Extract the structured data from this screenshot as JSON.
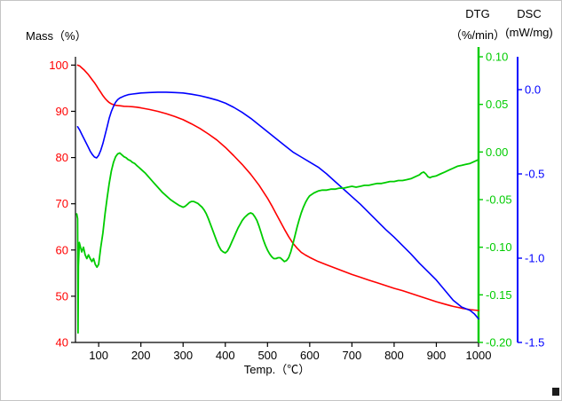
{
  "figure": {
    "mass_axis_title": "Mass（%）",
    "dtg_header": "DTG",
    "dtg_units": "（%/min）",
    "dsc_header": "DSC",
    "dsc_units": "(mW/mg)",
    "x_axis_title": "Temp.（℃）"
  },
  "chart_data": {
    "type": "line",
    "title": "",
    "grid": false,
    "legend": "none",
    "x_axis": {
      "label": "Temp. (℃)",
      "range": [
        45,
        1000
      ],
      "ticks": [
        100,
        200,
        300,
        400,
        500,
        600,
        700,
        800,
        900,
        1000
      ],
      "tick_labels": [
        "100",
        "200",
        "300",
        "400",
        "500",
        "600",
        "700",
        "800",
        "900",
        "1000"
      ],
      "color": "#000000"
    },
    "axes": {
      "mass": {
        "label": "Mass (%)",
        "range": [
          40,
          101.8
        ],
        "ticks": [
          40,
          50,
          60,
          70,
          80,
          90,
          100
        ],
        "tick_labels": [
          "40",
          "50",
          "60",
          "70",
          "80",
          "90",
          "100"
        ],
        "color": "#ff0000",
        "side": "left"
      },
      "dtg": {
        "label": "DTG (%/min)",
        "range": [
          -0.2,
          0.1
        ],
        "ticks": [
          0.1,
          0.05,
          0.0,
          -0.05,
          -0.1,
          -0.15,
          -0.2
        ],
        "tick_labels": [
          "0.10",
          "0.05",
          "0.00",
          "-0.05",
          "-0.10",
          "-0.15",
          "-0.20"
        ],
        "color": "#00cc00",
        "side": "right-inner"
      },
      "dsc": {
        "label": "DSC (mW/mg)",
        "range": [
          -1.5,
          0.195
        ],
        "ticks": [
          0.0,
          -0.5,
          -1.0,
          -1.5
        ],
        "tick_labels": [
          "0.0",
          "-0.5",
          "-1.0",
          "-1.5"
        ],
        "color": "#0000ff",
        "side": "right-outer"
      }
    },
    "series": [
      {
        "name": "Mass",
        "axis": "mass",
        "color": "#ff0000",
        "points": [
          [
            50,
            100
          ],
          [
            55,
            99.8
          ],
          [
            60,
            99.4
          ],
          [
            65,
            99.0
          ],
          [
            70,
            98.5
          ],
          [
            75,
            98.0
          ],
          [
            80,
            97.4
          ],
          [
            85,
            96.8
          ],
          [
            90,
            96.2
          ],
          [
            95,
            95.5
          ],
          [
            100,
            94.8
          ],
          [
            105,
            94.1
          ],
          [
            110,
            93.4
          ],
          [
            115,
            92.8
          ],
          [
            120,
            92.3
          ],
          [
            125,
            91.9
          ],
          [
            130,
            91.6
          ],
          [
            140,
            91.3
          ],
          [
            150,
            91.2
          ],
          [
            160,
            91.1
          ],
          [
            170,
            91.05
          ],
          [
            180,
            91.0
          ],
          [
            190,
            90.9
          ],
          [
            200,
            90.75
          ],
          [
            220,
            90.4
          ],
          [
            240,
            90.0
          ],
          [
            260,
            89.5
          ],
          [
            280,
            88.9
          ],
          [
            300,
            88.2
          ],
          [
            320,
            87.3
          ],
          [
            340,
            86.3
          ],
          [
            360,
            85.1
          ],
          [
            380,
            83.8
          ],
          [
            400,
            82.2
          ],
          [
            420,
            80.4
          ],
          [
            440,
            78.5
          ],
          [
            460,
            76.4
          ],
          [
            480,
            74.0
          ],
          [
            500,
            71.2
          ],
          [
            510,
            69.6
          ],
          [
            520,
            67.9
          ],
          [
            530,
            66.2
          ],
          [
            540,
            64.5
          ],
          [
            550,
            62.9
          ],
          [
            560,
            61.5
          ],
          [
            570,
            60.4
          ],
          [
            580,
            59.5
          ],
          [
            590,
            58.9
          ],
          [
            600,
            58.4
          ],
          [
            620,
            57.5
          ],
          [
            640,
            56.8
          ],
          [
            660,
            56.1
          ],
          [
            680,
            55.4
          ],
          [
            700,
            54.7
          ],
          [
            720,
            54.1
          ],
          [
            740,
            53.5
          ],
          [
            760,
            52.9
          ],
          [
            780,
            52.3
          ],
          [
            800,
            51.7
          ],
          [
            820,
            51.2
          ],
          [
            840,
            50.6
          ],
          [
            860,
            50.0
          ],
          [
            880,
            49.4
          ],
          [
            900,
            48.8
          ],
          [
            920,
            48.3
          ],
          [
            940,
            47.8
          ],
          [
            960,
            47.4
          ],
          [
            980,
            47.1
          ],
          [
            1000,
            46.9
          ]
        ]
      },
      {
        "name": "DSC",
        "axis": "dsc",
        "color": "#0000ff",
        "points": [
          [
            50,
            -0.22
          ],
          [
            55,
            -0.24
          ],
          [
            60,
            -0.265
          ],
          [
            65,
            -0.29
          ],
          [
            70,
            -0.315
          ],
          [
            75,
            -0.34
          ],
          [
            80,
            -0.365
          ],
          [
            85,
            -0.385
          ],
          [
            90,
            -0.4
          ],
          [
            95,
            -0.405
          ],
          [
            100,
            -0.39
          ],
          [
            105,
            -0.36
          ],
          [
            110,
            -0.32
          ],
          [
            115,
            -0.27
          ],
          [
            120,
            -0.22
          ],
          [
            125,
            -0.17
          ],
          [
            130,
            -0.13
          ],
          [
            135,
            -0.1
          ],
          [
            140,
            -0.075
          ],
          [
            145,
            -0.06
          ],
          [
            150,
            -0.05
          ],
          [
            160,
            -0.038
          ],
          [
            170,
            -0.03
          ],
          [
            180,
            -0.026
          ],
          [
            190,
            -0.023
          ],
          [
            200,
            -0.02
          ],
          [
            220,
            -0.017
          ],
          [
            240,
            -0.015
          ],
          [
            260,
            -0.015
          ],
          [
            280,
            -0.017
          ],
          [
            300,
            -0.02
          ],
          [
            320,
            -0.027
          ],
          [
            340,
            -0.036
          ],
          [
            360,
            -0.048
          ],
          [
            380,
            -0.062
          ],
          [
            400,
            -0.08
          ],
          [
            420,
            -0.105
          ],
          [
            440,
            -0.135
          ],
          [
            460,
            -0.17
          ],
          [
            480,
            -0.21
          ],
          [
            500,
            -0.25
          ],
          [
            520,
            -0.29
          ],
          [
            540,
            -0.33
          ],
          [
            560,
            -0.37
          ],
          [
            580,
            -0.4
          ],
          [
            600,
            -0.43
          ],
          [
            620,
            -0.46
          ],
          [
            640,
            -0.5
          ],
          [
            660,
            -0.545
          ],
          [
            680,
            -0.59
          ],
          [
            700,
            -0.635
          ],
          [
            720,
            -0.68
          ],
          [
            740,
            -0.73
          ],
          [
            760,
            -0.78
          ],
          [
            780,
            -0.83
          ],
          [
            800,
            -0.875
          ],
          [
            820,
            -0.925
          ],
          [
            840,
            -0.975
          ],
          [
            860,
            -1.03
          ],
          [
            880,
            -1.08
          ],
          [
            900,
            -1.13
          ],
          [
            910,
            -1.16
          ],
          [
            920,
            -1.19
          ],
          [
            930,
            -1.22
          ],
          [
            940,
            -1.25
          ],
          [
            950,
            -1.27
          ],
          [
            960,
            -1.29
          ],
          [
            970,
            -1.3
          ],
          [
            980,
            -1.31
          ],
          [
            990,
            -1.33
          ],
          [
            1000,
            -1.36
          ]
        ]
      },
      {
        "name": "DTG",
        "axis": "dtg",
        "color": "#00cc00",
        "points": [
          [
            48,
            -0.065
          ],
          [
            50,
            -0.07
          ],
          [
            51,
            -0.19
          ],
          [
            52,
            -0.12
          ],
          [
            54,
            -0.095
          ],
          [
            57,
            -0.1
          ],
          [
            60,
            -0.105
          ],
          [
            64,
            -0.1
          ],
          [
            68,
            -0.108
          ],
          [
            72,
            -0.112
          ],
          [
            76,
            -0.108
          ],
          [
            80,
            -0.112
          ],
          [
            84,
            -0.115
          ],
          [
            88,
            -0.112
          ],
          [
            92,
            -0.118
          ],
          [
            96,
            -0.121
          ],
          [
            100,
            -0.118
          ],
          [
            105,
            -0.1
          ],
          [
            110,
            -0.085
          ],
          [
            115,
            -0.065
          ],
          [
            120,
            -0.048
          ],
          [
            125,
            -0.033
          ],
          [
            130,
            -0.02
          ],
          [
            135,
            -0.011
          ],
          [
            140,
            -0.005
          ],
          [
            145,
            -0.002
          ],
          [
            150,
            -0.001
          ],
          [
            155,
            -0.003
          ],
          [
            160,
            -0.005
          ],
          [
            165,
            -0.006
          ],
          [
            170,
            -0.008
          ],
          [
            175,
            -0.009
          ],
          [
            180,
            -0.011
          ],
          [
            185,
            -0.012
          ],
          [
            190,
            -0.014
          ],
          [
            195,
            -0.016
          ],
          [
            200,
            -0.018
          ],
          [
            210,
            -0.022
          ],
          [
            220,
            -0.027
          ],
          [
            230,
            -0.032
          ],
          [
            240,
            -0.037
          ],
          [
            250,
            -0.042
          ],
          [
            260,
            -0.046
          ],
          [
            270,
            -0.05
          ],
          [
            280,
            -0.053
          ],
          [
            290,
            -0.056
          ],
          [
            300,
            -0.058
          ],
          [
            305,
            -0.057
          ],
          [
            310,
            -0.055
          ],
          [
            315,
            -0.053
          ],
          [
            320,
            -0.052
          ],
          [
            325,
            -0.052
          ],
          [
            330,
            -0.053
          ],
          [
            335,
            -0.054
          ],
          [
            340,
            -0.056
          ],
          [
            345,
            -0.058
          ],
          [
            350,
            -0.061
          ],
          [
            355,
            -0.065
          ],
          [
            360,
            -0.07
          ],
          [
            365,
            -0.076
          ],
          [
            370,
            -0.082
          ],
          [
            375,
            -0.088
          ],
          [
            380,
            -0.094
          ],
          [
            385,
            -0.099
          ],
          [
            390,
            -0.103
          ],
          [
            395,
            -0.105
          ],
          [
            400,
            -0.106
          ],
          [
            405,
            -0.104
          ],
          [
            410,
            -0.1
          ],
          [
            415,
            -0.095
          ],
          [
            420,
            -0.09
          ],
          [
            425,
            -0.085
          ],
          [
            430,
            -0.08
          ],
          [
            435,
            -0.076
          ],
          [
            440,
            -0.072
          ],
          [
            445,
            -0.069
          ],
          [
            450,
            -0.067
          ],
          [
            455,
            -0.065
          ],
          [
            460,
            -0.064
          ],
          [
            465,
            -0.065
          ],
          [
            470,
            -0.068
          ],
          [
            475,
            -0.072
          ],
          [
            480,
            -0.078
          ],
          [
            485,
            -0.085
          ],
          [
            490,
            -0.092
          ],
          [
            495,
            -0.098
          ],
          [
            500,
            -0.103
          ],
          [
            505,
            -0.107
          ],
          [
            510,
            -0.11
          ],
          [
            515,
            -0.112
          ],
          [
            520,
            -0.112
          ],
          [
            525,
            -0.111
          ],
          [
            530,
            -0.111
          ],
          [
            535,
            -0.113
          ],
          [
            540,
            -0.115
          ],
          [
            545,
            -0.114
          ],
          [
            550,
            -0.111
          ],
          [
            555,
            -0.105
          ],
          [
            560,
            -0.097
          ],
          [
            565,
            -0.088
          ],
          [
            570,
            -0.079
          ],
          [
            575,
            -0.071
          ],
          [
            580,
            -0.064
          ],
          [
            585,
            -0.058
          ],
          [
            590,
            -0.053
          ],
          [
            595,
            -0.049
          ],
          [
            600,
            -0.046
          ],
          [
            610,
            -0.043
          ],
          [
            620,
            -0.041
          ],
          [
            630,
            -0.04
          ],
          [
            640,
            -0.04
          ],
          [
            650,
            -0.039
          ],
          [
            660,
            -0.039
          ],
          [
            670,
            -0.038
          ],
          [
            680,
            -0.038
          ],
          [
            690,
            -0.037
          ],
          [
            700,
            -0.036
          ],
          [
            710,
            -0.037
          ],
          [
            720,
            -0.036
          ],
          [
            730,
            -0.035
          ],
          [
            740,
            -0.035
          ],
          [
            750,
            -0.034
          ],
          [
            760,
            -0.033
          ],
          [
            770,
            -0.033
          ],
          [
            780,
            -0.032
          ],
          [
            790,
            -0.031
          ],
          [
            800,
            -0.031
          ],
          [
            810,
            -0.03
          ],
          [
            820,
            -0.03
          ],
          [
            830,
            -0.029
          ],
          [
            840,
            -0.028
          ],
          [
            850,
            -0.026
          ],
          [
            860,
            -0.024
          ],
          [
            865,
            -0.022
          ],
          [
            870,
            -0.021
          ],
          [
            875,
            -0.023
          ],
          [
            880,
            -0.026
          ],
          [
            885,
            -0.027
          ],
          [
            890,
            -0.026
          ],
          [
            900,
            -0.025
          ],
          [
            910,
            -0.023
          ],
          [
            920,
            -0.021
          ],
          [
            930,
            -0.019
          ],
          [
            940,
            -0.017
          ],
          [
            950,
            -0.015
          ],
          [
            960,
            -0.014
          ],
          [
            970,
            -0.013
          ],
          [
            980,
            -0.012
          ],
          [
            990,
            -0.01
          ],
          [
            1000,
            -0.008
          ]
        ]
      }
    ]
  }
}
